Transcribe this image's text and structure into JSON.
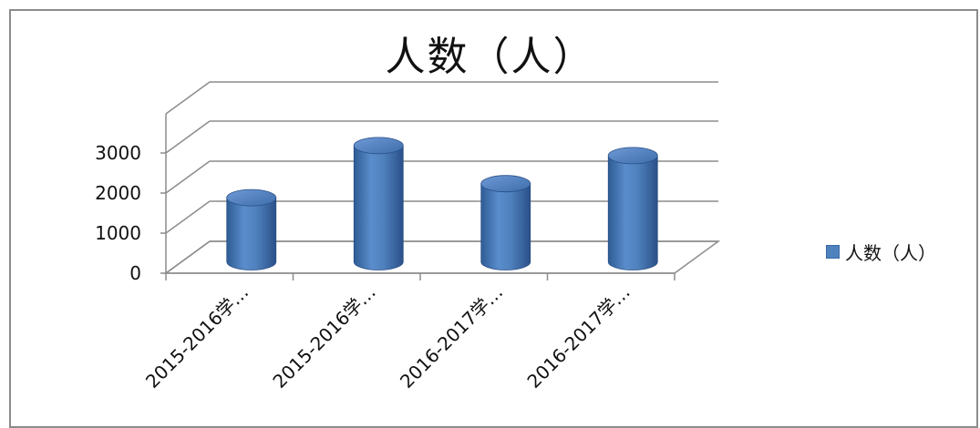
{
  "chart_data": {
    "type": "bar",
    "title": "人数（人）",
    "categories": [
      "2015-2016学…",
      "2015-2016学…",
      "2016-2017学…",
      "2016-2017学…"
    ],
    "series": [
      {
        "name": "人数（人）",
        "values": [
          1600,
          2900,
          1950,
          2650
        ]
      }
    ],
    "ylim": [
      0,
      3000
    ],
    "yticks": [
      "0",
      "1000",
      "2000",
      "3000"
    ],
    "grid": true,
    "legend": "right",
    "bar_color": "#4f81bd"
  }
}
